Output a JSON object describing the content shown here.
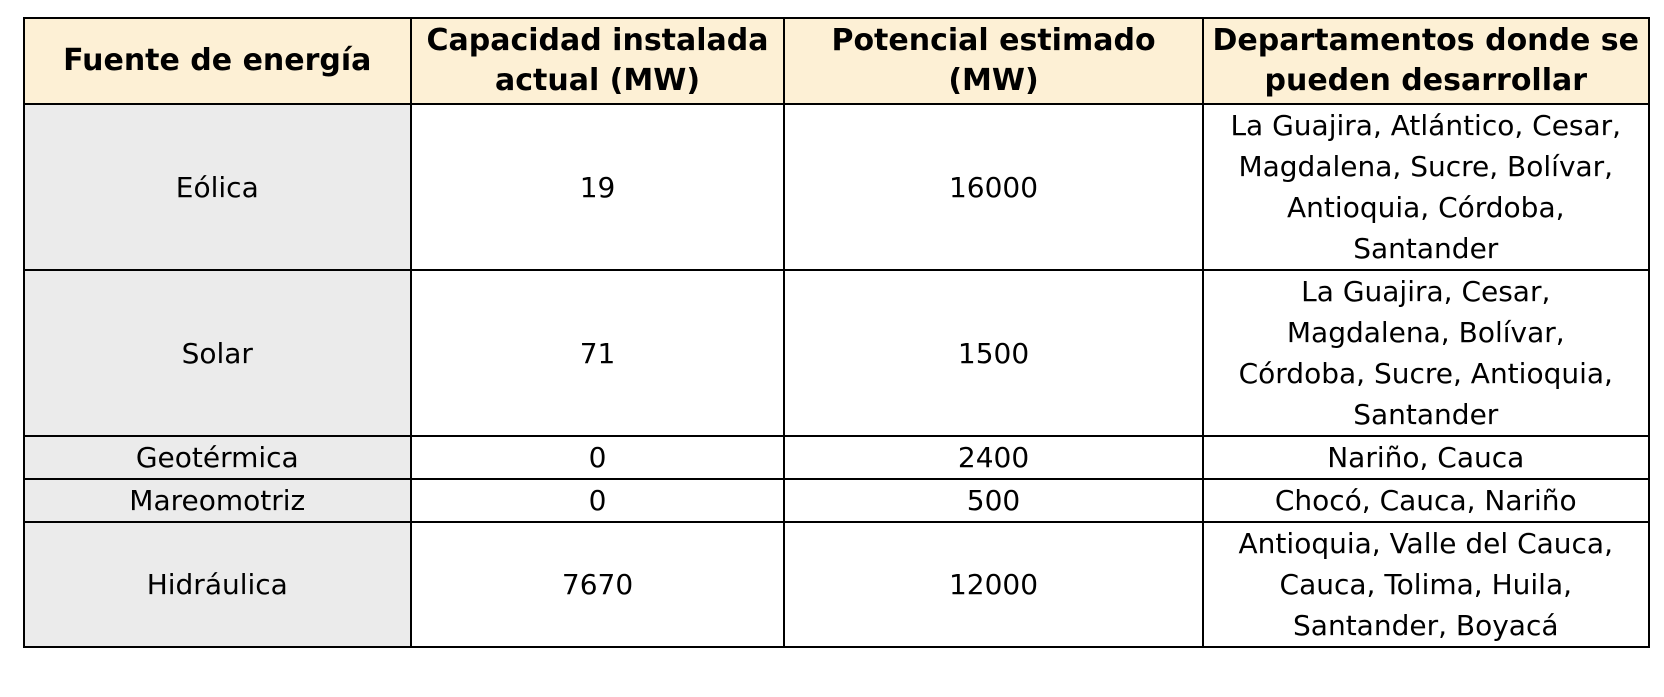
{
  "colors": {
    "header_background": "#fdf0d5",
    "source_column_background": "#ebebeb",
    "cell_background": "#ffffff",
    "border": "#000000"
  },
  "chart_data": {
    "type": "table",
    "columns": [
      "Fuente de energía",
      "Capacidad instalada actual (MW)",
      "Potencial estimado (MW)",
      "Departamentos donde se pueden desarrollar"
    ],
    "header_lines": [
      [
        "Fuente de energía"
      ],
      [
        "Capacidad instalada",
        "actual (MW)"
      ],
      [
        "Potencial estimado",
        "(MW)"
      ],
      [
        "Departamentos donde se",
        "pueden desarrollar"
      ]
    ],
    "rows": [
      {
        "source": "Eólica",
        "capacity_mw": 19,
        "potential_mw": 16000,
        "regions_text": "La Guajira, Atlántico, Cesar, Magdalena, Sucre, Bolívar, Antioquia, Córdoba, Santander",
        "region_lines": [
          "La Guajira, Atlántico, Cesar,",
          "Magdalena, Sucre, Bolívar,",
          "Antioquia, Córdoba,",
          "Santander"
        ]
      },
      {
        "source": "Solar",
        "capacity_mw": 71,
        "potential_mw": 1500,
        "regions_text": "La Guajira, Cesar, Magdalena, Bolívar, Córdoba, Sucre, Antioquia, Santander",
        "region_lines": [
          "La Guajira, Cesar,",
          "Magdalena, Bolívar,",
          "Córdoba, Sucre, Antioquia,",
          "Santander"
        ]
      },
      {
        "source": "Geotérmica",
        "capacity_mw": 0,
        "potential_mw": 2400,
        "regions_text": "Nariño, Cauca",
        "region_lines": [
          "Nariño, Cauca"
        ]
      },
      {
        "source": "Mareomotriz",
        "capacity_mw": 0,
        "potential_mw": 500,
        "regions_text": "Chocó, Cauca, Nariño",
        "region_lines": [
          "Chocó, Cauca, Nariño"
        ]
      },
      {
        "source": "Hidráulica",
        "capacity_mw": 7670,
        "potential_mw": 12000,
        "regions_text": "Antioquia, Valle del Cauca, Cauca, Tolima, Huila, Santander, Boyacá",
        "region_lines": [
          "Antioquia, Valle del Cauca,",
          "Cauca, Tolima, Huila,",
          "Santander, Boyacá"
        ]
      }
    ]
  }
}
